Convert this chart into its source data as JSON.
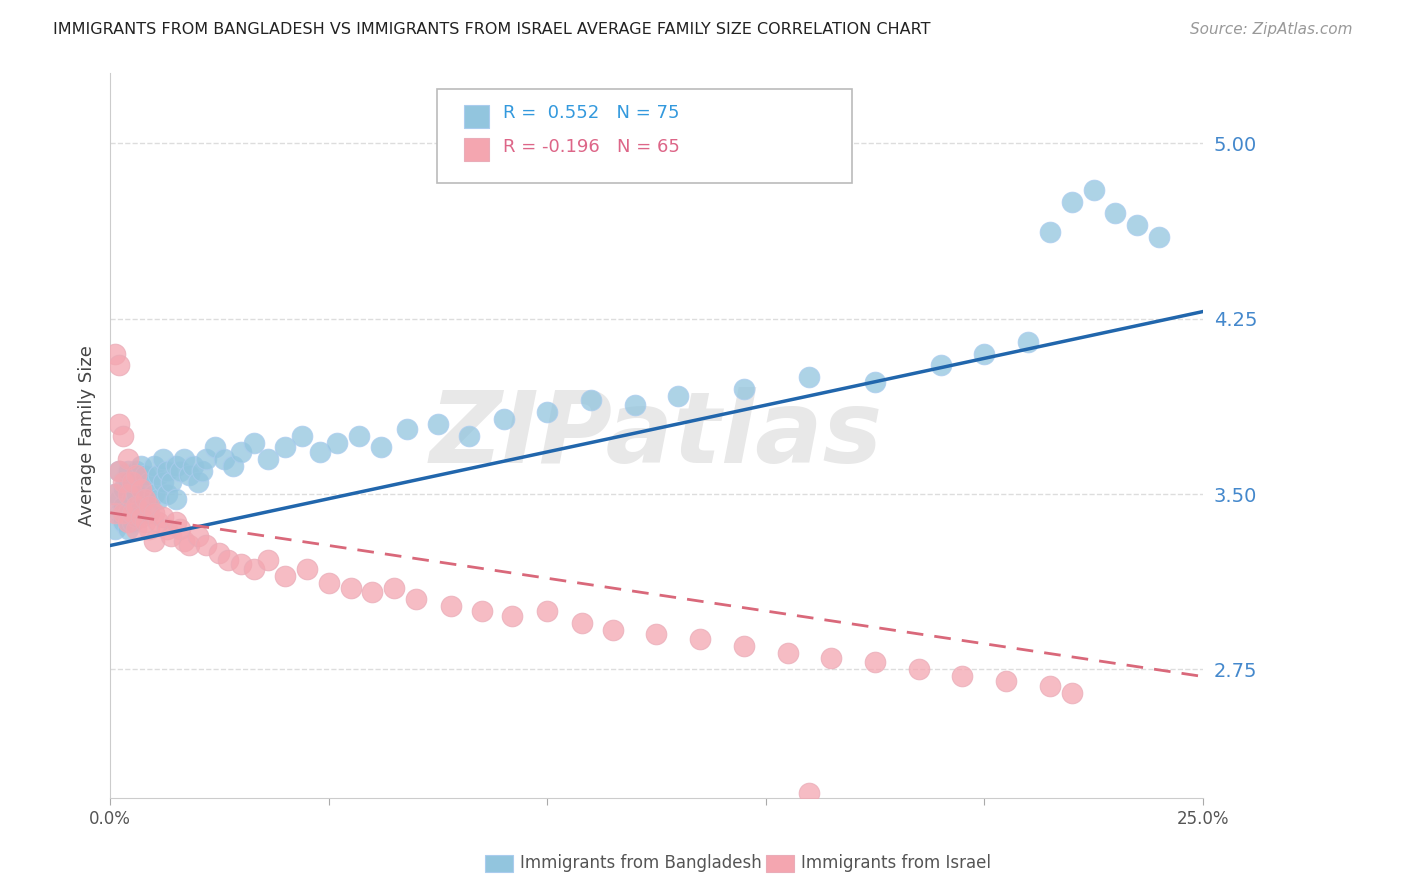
{
  "title": "IMMIGRANTS FROM BANGLADESH VS IMMIGRANTS FROM ISRAEL AVERAGE FAMILY SIZE CORRELATION CHART",
  "source": "Source: ZipAtlas.com",
  "ylabel": "Average Family Size",
  "xlim": [
    0.0,
    0.25
  ],
  "ylim": [
    2.2,
    5.3
  ],
  "yticks": [
    2.75,
    3.5,
    4.25,
    5.0
  ],
  "yticklabels": [
    "2.75",
    "3.50",
    "4.25",
    "5.00"
  ],
  "xticks": [
    0.0,
    0.05,
    0.1,
    0.15,
    0.2,
    0.25
  ],
  "xticklabels": [
    "0.0%",
    "",
    "",
    "",
    "",
    "25.0%"
  ],
  "background_color": "#ffffff",
  "grid_color": "#dddddd",
  "watermark": "ZIPatlas",
  "blue_color": "#92c5de",
  "pink_color": "#f4a6b0",
  "blue_line_color": "#2166ac",
  "pink_line_color": "#d9687a",
  "blue_line_x0": 0.0,
  "blue_line_y0": 3.28,
  "blue_line_x1": 0.25,
  "blue_line_y1": 4.28,
  "pink_line_x0": 0.0,
  "pink_line_y0": 3.42,
  "pink_line_x1": 0.25,
  "pink_line_y1": 2.72,
  "legend_text_blue": "R =  0.552   N = 75",
  "legend_text_pink": "R = -0.196   N = 65",
  "legend_color_blue": "#3399dd",
  "legend_color_pink": "#dd6688",
  "bottom_label_blue": "Immigrants from Bangladesh",
  "bottom_label_pink": "Immigrants from Israel",
  "blue_x": [
    0.001,
    0.001,
    0.002,
    0.002,
    0.002,
    0.003,
    0.003,
    0.003,
    0.004,
    0.004,
    0.004,
    0.004,
    0.005,
    0.005,
    0.005,
    0.006,
    0.006,
    0.006,
    0.007,
    0.007,
    0.007,
    0.008,
    0.008,
    0.009,
    0.009,
    0.01,
    0.01,
    0.011,
    0.011,
    0.012,
    0.012,
    0.013,
    0.013,
    0.014,
    0.015,
    0.015,
    0.016,
    0.017,
    0.018,
    0.019,
    0.02,
    0.021,
    0.022,
    0.024,
    0.026,
    0.028,
    0.03,
    0.033,
    0.036,
    0.04,
    0.044,
    0.048,
    0.052,
    0.057,
    0.062,
    0.068,
    0.075,
    0.082,
    0.09,
    0.1,
    0.11,
    0.12,
    0.13,
    0.145,
    0.16,
    0.175,
    0.19,
    0.2,
    0.21,
    0.215,
    0.22,
    0.225,
    0.23,
    0.235,
    0.24
  ],
  "blue_y": [
    3.5,
    3.35,
    3.48,
    3.6,
    3.42,
    3.45,
    3.52,
    3.38,
    3.55,
    3.42,
    3.6,
    3.35,
    3.48,
    3.55,
    3.38,
    3.5,
    3.6,
    3.4,
    3.52,
    3.45,
    3.62,
    3.48,
    3.58,
    3.42,
    3.55,
    3.5,
    3.62,
    3.48,
    3.58,
    3.55,
    3.65,
    3.5,
    3.6,
    3.55,
    3.62,
    3.48,
    3.6,
    3.65,
    3.58,
    3.62,
    3.55,
    3.6,
    3.65,
    3.7,
    3.65,
    3.62,
    3.68,
    3.72,
    3.65,
    3.7,
    3.75,
    3.68,
    3.72,
    3.75,
    3.7,
    3.78,
    3.8,
    3.75,
    3.82,
    3.85,
    3.9,
    3.88,
    3.92,
    3.95,
    4.0,
    3.98,
    4.05,
    4.1,
    4.15,
    4.62,
    4.75,
    4.8,
    4.7,
    4.65,
    4.6
  ],
  "pink_x": [
    0.001,
    0.001,
    0.001,
    0.002,
    0.002,
    0.002,
    0.003,
    0.003,
    0.003,
    0.004,
    0.004,
    0.004,
    0.005,
    0.005,
    0.006,
    0.006,
    0.006,
    0.007,
    0.007,
    0.008,
    0.008,
    0.009,
    0.009,
    0.01,
    0.01,
    0.011,
    0.012,
    0.013,
    0.014,
    0.015,
    0.016,
    0.017,
    0.018,
    0.02,
    0.022,
    0.025,
    0.027,
    0.03,
    0.033,
    0.036,
    0.04,
    0.045,
    0.05,
    0.055,
    0.06,
    0.065,
    0.07,
    0.078,
    0.085,
    0.092,
    0.1,
    0.108,
    0.115,
    0.125,
    0.135,
    0.145,
    0.155,
    0.165,
    0.175,
    0.185,
    0.195,
    0.205,
    0.215,
    0.22,
    0.16
  ],
  "pink_y": [
    3.5,
    3.42,
    4.1,
    4.05,
    3.8,
    3.6,
    3.75,
    3.55,
    3.42,
    3.65,
    3.5,
    3.38,
    3.55,
    3.42,
    3.58,
    3.45,
    3.35,
    3.52,
    3.4,
    3.48,
    3.38,
    3.45,
    3.35,
    3.42,
    3.3,
    3.38,
    3.4,
    3.35,
    3.32,
    3.38,
    3.35,
    3.3,
    3.28,
    3.32,
    3.28,
    3.25,
    3.22,
    3.2,
    3.18,
    3.22,
    3.15,
    3.18,
    3.12,
    3.1,
    3.08,
    3.1,
    3.05,
    3.02,
    3.0,
    2.98,
    3.0,
    2.95,
    2.92,
    2.9,
    2.88,
    2.85,
    2.82,
    2.8,
    2.78,
    2.75,
    2.72,
    2.7,
    2.68,
    2.65,
    2.22
  ]
}
